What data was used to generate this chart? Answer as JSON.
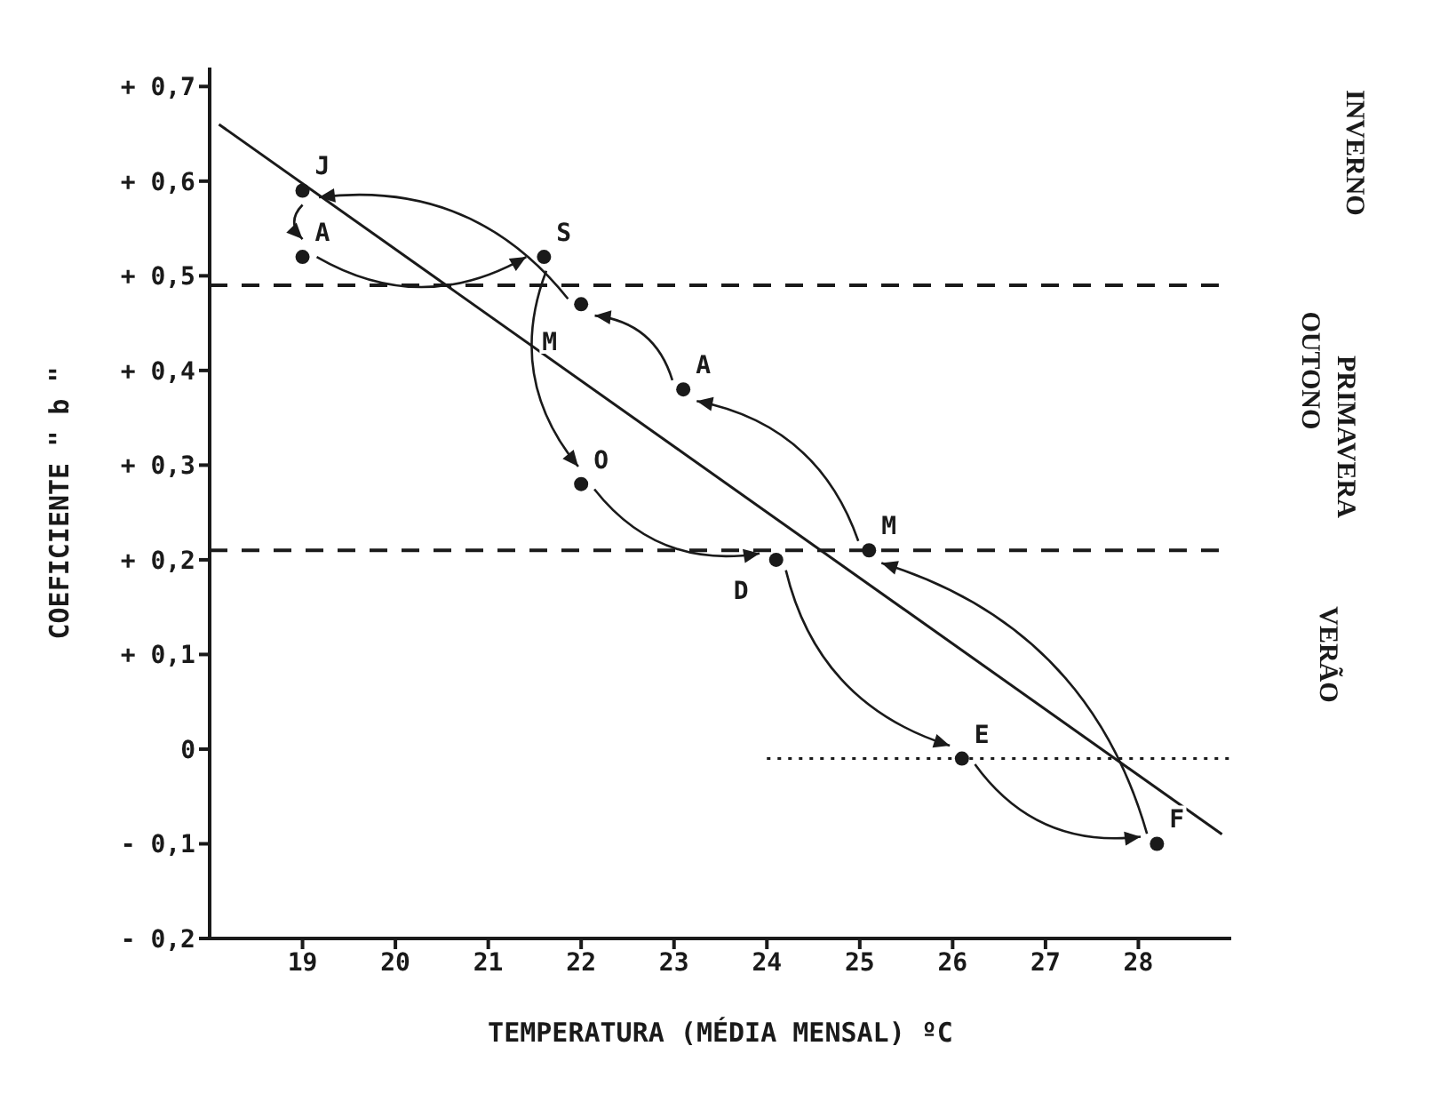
{
  "chart_data": {
    "type": "scatter",
    "xlabel": "TEMPERATURA (MÉDIA MENSAL) ºC",
    "ylabel": "COEFICIENTE \" b \"",
    "xlim": [
      18,
      29
    ],
    "ylim": [
      -0.2,
      0.72
    ],
    "xticks": [
      19,
      20,
      21,
      22,
      23,
      24,
      25,
      26,
      27,
      28
    ],
    "yticks": [
      {
        "value": -0.2,
        "label": "- 0,2"
      },
      {
        "value": -0.1,
        "label": "- 0,1"
      },
      {
        "value": 0,
        "label": "0"
      },
      {
        "value": 0.1,
        "label": "+ 0,1"
      },
      {
        "value": 0.2,
        "label": "+ 0,2"
      },
      {
        "value": 0.3,
        "label": "+ 0,3"
      },
      {
        "value": 0.4,
        "label": "+ 0,4"
      },
      {
        "value": 0.5,
        "label": "+ 0,5"
      },
      {
        "value": 0.6,
        "label": "+ 0,6"
      },
      {
        "value": 0.7,
        "label": "+ 0,7"
      }
    ],
    "marker": "circle",
    "series": [
      {
        "color": "#1a1a1a",
        "x": [
          19.0,
          19.0,
          21.6,
          22.0,
          24.1,
          26.1,
          28.2,
          25.1,
          23.1,
          22.0
        ],
        "values": [
          0.59,
          0.52,
          0.52,
          0.28,
          0.2,
          -0.01,
          -0.1,
          0.21,
          0.38,
          0.47
        ],
        "value_labels": [
          "J",
          "A",
          "S",
          "O",
          "D",
          "E",
          "F",
          "M",
          "A",
          "M"
        ]
      },
      {
        "type": "line",
        "color": "#1a1a1a",
        "x": [
          18.1,
          28.9
        ],
        "values": [
          0.66,
          -0.09
        ],
        "line_style": "solid",
        "marker": "none"
      },
      {
        "type": "line",
        "color": "#1a1a1a",
        "x": [
          24,
          29
        ],
        "values": [
          -0.01,
          -0.01
        ],
        "line_style": "dotted",
        "marker": "none"
      }
    ],
    "ref_lines": [
      {
        "axis": "y",
        "value": 0.49,
        "line_style": "dashed",
        "color": "#1a1a1a"
      },
      {
        "axis": "y",
        "value": 0.21,
        "line_style": "dashed",
        "color": "#1a1a1a"
      }
    ],
    "annotations": [
      "INVERNO",
      "OUTONO",
      "PRIMAVERA",
      "VERÃO"
    ]
  }
}
